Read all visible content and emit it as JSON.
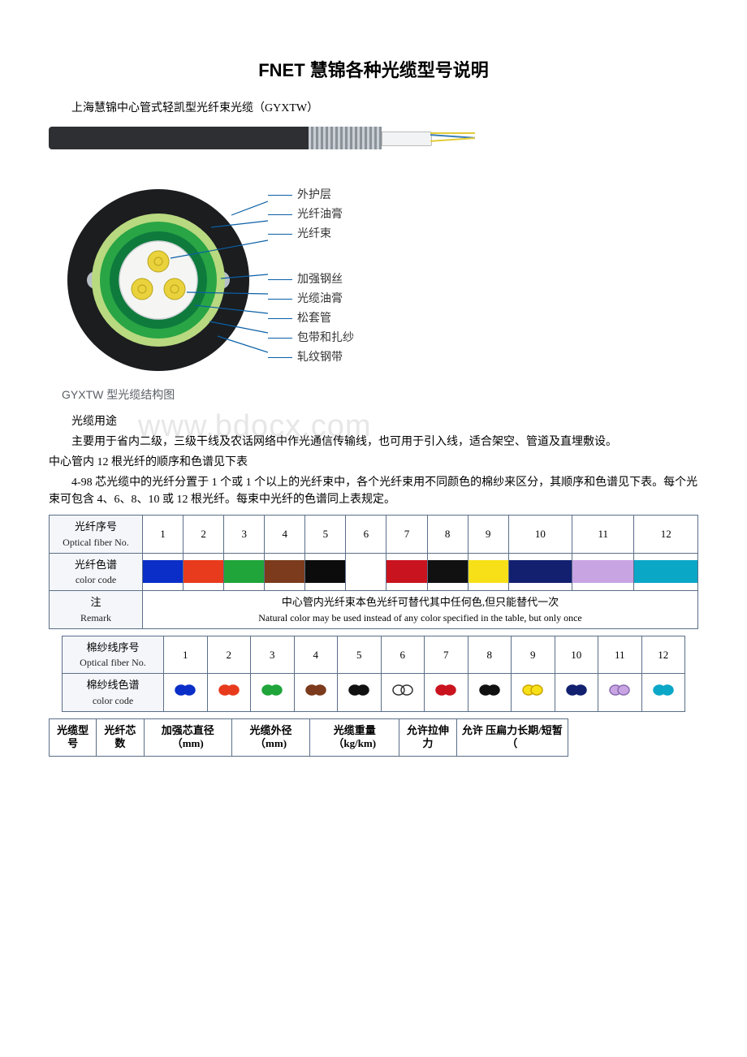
{
  "title": "FNET 慧锦各种光缆型号说明",
  "subtitle": "上海慧锦中心管式轻凯型光纤束光缆（GYXTW）",
  "diagram": {
    "labels": [
      "外护层",
      "光纤油膏",
      "光纤束",
      "加强钢丝",
      "光缆油膏",
      "松套管",
      "包带和扎纱",
      "轧纹钢带"
    ],
    "caption": "GYXTW 型光缆结构图",
    "colors": {
      "outer_black": "#1b1d1f",
      "wire_grey": "#b7bfc6",
      "ring_lightgreen": "#B8D97F",
      "ring_green": "#29A545",
      "ring_inner": "#0E7B3D",
      "tube_white": "#f5f6f4",
      "fiber_yellow": "#E9D23B",
      "background": "#ffffff",
      "label_line": "#0b5fa6"
    }
  },
  "usage_heading": "光缆用途",
  "usage_text1": "主要用于省内二级，三级干线及农话网络中作光通信传输线，也可用于引入线，适合架空、管道及直埋敷设。",
  "usage_text2": "中心管内 12 根光纤的顺序和色谱见下表",
  "usage_text3": "4-98 芯光缆中的光纤分置于 1 个或 1 个以上的光纤束中，各个光纤束用不同颜色的棉纱来区分，其顺序和色谱见下表。每个光束可包含 4、6、8、10 或 12 根光纤。每束中光纤的色谱同上表规定。",
  "watermark": "www.bdocx.com",
  "color_table": {
    "row1_label_cn": "光纤序号",
    "row1_label_en": "Optical fiber No.",
    "row2_label_cn": "光纤色谱",
    "row2_label_en": "color code",
    "row3_label_cn": "注",
    "row3_label_en": "Remark",
    "numbers": [
      "1",
      "2",
      "3",
      "4",
      "5",
      "6",
      "7",
      "8",
      "9",
      "10",
      "11",
      "12"
    ],
    "colors": [
      "#0A2EC7",
      "#E83A1C",
      "#1FA53A",
      "#7B3B1C",
      "#0C0C0C",
      "#FFFFFF",
      "#C9131E",
      "#111111",
      "#F7E017",
      "#12206F",
      "#C9A4E3",
      "#0BA7C7"
    ],
    "remark_cn": "中心管内光纤束本色光纤可替代其中任何色,但只能替代一次",
    "remark_en": "Natural color may be used instead of any color specified in the table,  but only once"
  },
  "yarn_table": {
    "row1_label_cn": "棉纱线序号",
    "row1_label_en": "Optical fiber No.",
    "row2_label_cn": "棉纱线色谱",
    "row2_label_en": "color code",
    "numbers": [
      "1",
      "2",
      "3",
      "4",
      "5",
      "6",
      "7",
      "8",
      "9",
      "10",
      "11",
      "12"
    ],
    "glyphs": [
      {
        "fill": "#0A2EC7",
        "stroke": "#0A2EC7"
      },
      {
        "fill": "#E83A1C",
        "stroke": "#E83A1C"
      },
      {
        "fill": "#1FA53A",
        "stroke": "#1FA53A"
      },
      {
        "fill": "#7B3B1C",
        "stroke": "#7B3B1C"
      },
      {
        "fill": "#111111",
        "stroke": "#111111"
      },
      {
        "fill": "none",
        "stroke": "#333333"
      },
      {
        "fill": "#C9131E",
        "stroke": "#C9131E"
      },
      {
        "fill": "#111111",
        "stroke": "#111111"
      },
      {
        "fill": "#F7E017",
        "stroke": "#C9A300"
      },
      {
        "fill": "#12206F",
        "stroke": "#12206F"
      },
      {
        "fill": "#C9A4E3",
        "stroke": "#8A6BB0"
      },
      {
        "fill": "#0BA7C7",
        "stroke": "#0BA7C7"
      }
    ]
  },
  "spec_table": {
    "headers": [
      "光缆型号",
      "光纤芯数",
      "加强芯直径（mm)",
      "光缆外径（mm)",
      "光缆重量（kg/km)",
      "允许拉伸力",
      "允许   压扁力长期/短暂（"
    ]
  }
}
